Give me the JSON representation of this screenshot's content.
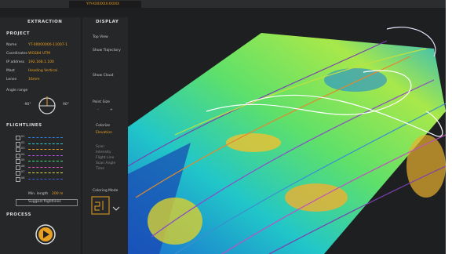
{
  "tab": "YYY-XXXXXXX-XXXXX",
  "extraction": {
    "title": "EXTRACTION",
    "project": {
      "title": "PROJECT",
      "fields": [
        {
          "label": "Name",
          "value": "YT-00000000-11007-1"
        },
        {
          "label": "Coordinates",
          "value": "WGS84 UTM"
        },
        {
          "label": "IP address",
          "value": "192.168.1.100"
        },
        {
          "label": "Mast",
          "value": "Heading Vertical"
        },
        {
          "label": "Lense",
          "value": "16mm"
        }
      ],
      "angle_label": "Angle range",
      "angle_min": "-90°",
      "angle_max": "90°"
    },
    "flightlines": {
      "title": "FLIGHTLINES",
      "rows": [
        "01",
        "02",
        "03",
        "04",
        "05",
        "06",
        "07",
        "08"
      ],
      "min_length_label": "Min. length",
      "min_length_value": "200 m",
      "button": "Suggest flightlines"
    },
    "process": {
      "title": "PROCESS"
    }
  },
  "display": {
    "title": "DISPLAY",
    "items": [
      "Top View",
      "Show Trajectory",
      "Show Cloud",
      "Point Size"
    ],
    "point_size_controls": [
      "-",
      "+"
    ],
    "colorize": "Colorize",
    "colorize_value": "Elevation",
    "color_options": [
      "Scan",
      "Intensity",
      "Flight Line",
      "Scan Angle",
      "Time"
    ],
    "coloring_mode": "Coloring Mode"
  }
}
